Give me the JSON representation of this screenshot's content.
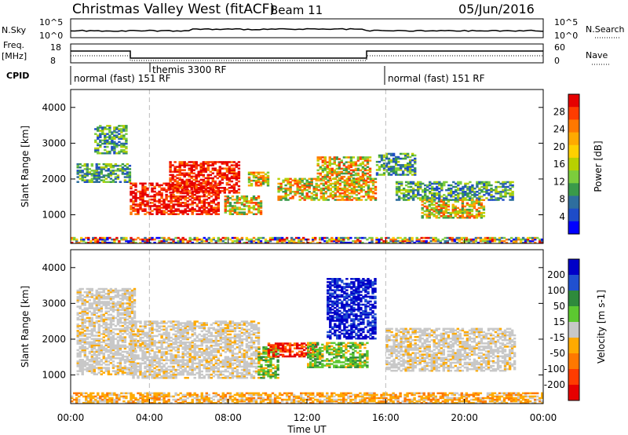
{
  "header": {
    "station": "Christmas Valley West (fitACF)",
    "beam": "Beam 11",
    "date": "05/Jun/2016"
  },
  "top_strip": {
    "nsky_label": "N.Sky",
    "nsearch_label": "N.Search",
    "left_ticks": [
      "10^5",
      "10^0"
    ],
    "right_ticks": [
      "10^5",
      "10^0"
    ],
    "freq_label_line1": "Freq.",
    "freq_label_line2": "[MHz]",
    "freq_ticks": [
      "18",
      "8"
    ],
    "nave_label": "Nave",
    "nave_ticks": [
      "60",
      "0"
    ],
    "cpid_label": "CPID",
    "cpid_segments": [
      {
        "label": "normal (fast) 151 RF",
        "start_hour": 0
      },
      {
        "label": "themis 3300 RF",
        "start_hour": 4
      },
      {
        "label": "normal (fast) 151 RF",
        "start_hour": 16
      }
    ]
  },
  "chart_data": [
    {
      "type": "heatmap",
      "quantity": "Power",
      "xlabel": "",
      "ylabel": "Slant Range [km]",
      "xlim": [
        0,
        24
      ],
      "ylim": [
        200,
        4500
      ],
      "y_ticks": [
        1000,
        2000,
        3000,
        4000
      ],
      "colorbar": {
        "label": "Power [dB]",
        "ticks": [
          "28",
          "24",
          "20",
          "16",
          "12",
          "8",
          "4"
        ],
        "colors": [
          "#e60000",
          "#ff3c00",
          "#ff7800",
          "#ffaa00",
          "#ffd000",
          "#b8d000",
          "#7ccd3c",
          "#3a9a4a",
          "#2e6e9e",
          "#1e4cc8",
          "#0000ff"
        ]
      },
      "echo_regions": [
        {
          "t0": 0.3,
          "t1": 3.0,
          "r0": 1900,
          "r1": 2400,
          "level": "low"
        },
        {
          "t0": 1.2,
          "t1": 2.8,
          "r0": 2700,
          "r1": 3500,
          "level": "low"
        },
        {
          "t0": 3.0,
          "t1": 7.5,
          "r0": 1000,
          "r1": 1900,
          "level": "high"
        },
        {
          "t0": 5.0,
          "t1": 8.5,
          "r0": 1600,
          "r1": 2500,
          "level": "high"
        },
        {
          "t0": 7.8,
          "t1": 9.6,
          "r0": 1000,
          "r1": 1500,
          "level": "mid"
        },
        {
          "t0": 9.0,
          "t1": 10.0,
          "r0": 1800,
          "r1": 2200,
          "level": "mid"
        },
        {
          "t0": 10.5,
          "t1": 15.5,
          "r0": 1400,
          "r1": 2000,
          "level": "mid"
        },
        {
          "t0": 12.5,
          "t1": 15.2,
          "r0": 2000,
          "r1": 2600,
          "level": "mid"
        },
        {
          "t0": 15.5,
          "t1": 17.5,
          "r0": 2100,
          "r1": 2700,
          "level": "low"
        },
        {
          "t0": 16.5,
          "t1": 22.5,
          "r0": 1400,
          "r1": 1900,
          "level": "low"
        },
        {
          "t0": 17.8,
          "t1": 21.0,
          "r0": 900,
          "r1": 1400,
          "level": "mid"
        },
        {
          "t0": 0.0,
          "t1": 24.0,
          "r0": 200,
          "r1": 350,
          "level": "mixed"
        }
      ]
    },
    {
      "type": "heatmap",
      "quantity": "Velocity",
      "xlabel": "Time UT",
      "ylabel": "Slant Range [km]",
      "xlim": [
        0,
        24
      ],
      "ylim": [
        200,
        4500
      ],
      "x_ticks": [
        "00:00",
        "04:00",
        "08:00",
        "12:00",
        "16:00",
        "20:00",
        "00:00"
      ],
      "y_ticks": [
        1000,
        2000,
        3000,
        4000
      ],
      "colorbar": {
        "label": "Velocity [m s-1]",
        "ticks": [
          "200",
          "100",
          "50",
          "15",
          "-15",
          "-50",
          "-100",
          "-200"
        ],
        "colors": [
          "#0000c8",
          "#2050d0",
          "#2e8a3c",
          "#5cc830",
          "#c8c8c8",
          "#ffaa00",
          "#ff7800",
          "#ff3c00",
          "#e60000"
        ]
      },
      "echo_regions": [
        {
          "t0": 0.3,
          "t1": 3.2,
          "r0": 1000,
          "r1": 3400,
          "level": "ground"
        },
        {
          "t0": 3.0,
          "t1": 9.5,
          "r0": 900,
          "r1": 2500,
          "level": "ground"
        },
        {
          "t0": 9.5,
          "t1": 10.5,
          "r0": 900,
          "r1": 1800,
          "level": "green"
        },
        {
          "t0": 10.0,
          "t1": 12.5,
          "r0": 1500,
          "r1": 1900,
          "level": "red"
        },
        {
          "t0": 12.0,
          "t1": 15.0,
          "r0": 1200,
          "r1": 1900,
          "level": "green"
        },
        {
          "t0": 13.0,
          "t1": 15.5,
          "r0": 2000,
          "r1": 3700,
          "level": "blue"
        },
        {
          "t0": 16.0,
          "t1": 22.5,
          "r0": 1100,
          "r1": 2300,
          "level": "ground"
        },
        {
          "t0": 0.0,
          "t1": 24.0,
          "r0": 200,
          "r1": 500,
          "level": "orange"
        }
      ]
    }
  ]
}
